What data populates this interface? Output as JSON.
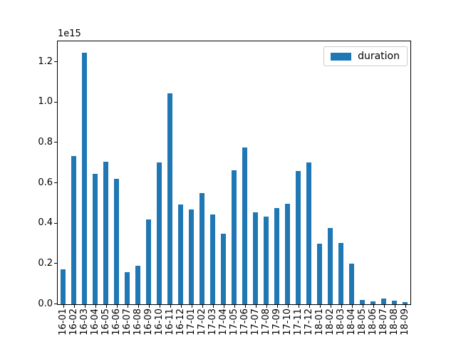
{
  "window": {
    "background": "#ffffff"
  },
  "axes": {
    "offset_text": "1e15",
    "y_tick_labels": [
      "0.0",
      "0.2",
      "0.4",
      "0.6",
      "0.8",
      "1.0",
      "1.2"
    ],
    "y_tick_values": [
      0.0,
      0.2,
      0.4,
      0.6,
      0.8,
      1.0,
      1.2
    ],
    "spine_color": "#000000"
  },
  "legend": {
    "label": "duration",
    "swatch_color": "#1f77b4",
    "position": "upper right"
  },
  "chart_data": {
    "type": "bar",
    "title": "",
    "xlabel": "",
    "ylabel": "",
    "unit_multiplier": "1e15",
    "grid": false,
    "x_tick_rotation": 90,
    "ylim": [
      0,
      1.303
    ],
    "y_ticks": [
      0.0,
      0.2,
      0.4,
      0.6,
      0.8,
      1.0,
      1.2
    ],
    "legend_position": "upper right",
    "bar_color": "#1f77b4",
    "categories": [
      "16-01",
      "16-02",
      "16-03",
      "16-04",
      "16-05",
      "16-06",
      "16-07",
      "16-08",
      "16-09",
      "16-10",
      "16-11",
      "16-12",
      "17-01",
      "17-02",
      "17-03",
      "17-04",
      "17-05",
      "17-06",
      "17-07",
      "17-08",
      "17-09",
      "17-10",
      "17-11",
      "17-12",
      "18-01",
      "18-02",
      "18-03",
      "18-04",
      "18-05",
      "18-06",
      "18-07",
      "18-08",
      "18-09"
    ],
    "series": [
      {
        "name": "duration",
        "color": "#1f77b4",
        "values": [
          0.172,
          0.735,
          1.245,
          0.645,
          0.708,
          0.623,
          0.16,
          0.19,
          0.419,
          0.701,
          1.044,
          0.495,
          0.468,
          0.551,
          0.445,
          0.35,
          0.665,
          0.777,
          0.454,
          0.434,
          0.477,
          0.498,
          0.662,
          0.703,
          0.301,
          0.377,
          0.305,
          0.2,
          0.021,
          0.013,
          0.028,
          0.016,
          0.009
        ]
      }
    ]
  }
}
